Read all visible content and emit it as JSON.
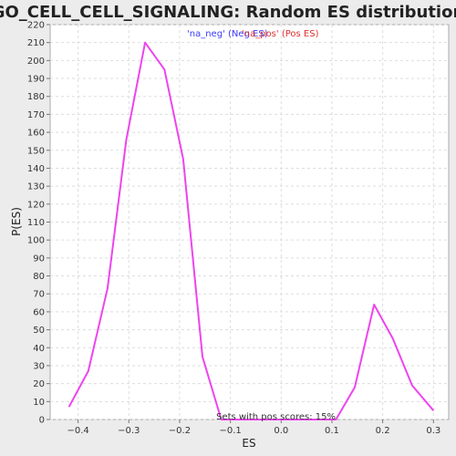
{
  "chart_data": {
    "type": "line",
    "title": "GO_CELL_CELL_SIGNALING: Random ES distribution",
    "xlabel": "ES",
    "ylabel": "P(ES)",
    "xlim": [
      -0.455,
      0.33
    ],
    "ylim": [
      0,
      220
    ],
    "x_ticks": [
      -0.4,
      -0.3,
      -0.2,
      -0.1,
      0.0,
      0.1,
      0.2,
      0.3
    ],
    "x_tick_labels": [
      "−0.4",
      "−0.3",
      "−0.2",
      "−0.1",
      "0.0",
      "0.1",
      "0.2",
      "0.3"
    ],
    "y_ticks": [
      0,
      10,
      20,
      30,
      40,
      50,
      60,
      70,
      80,
      90,
      100,
      110,
      120,
      130,
      140,
      150,
      160,
      170,
      180,
      190,
      200,
      210,
      220
    ],
    "grid": true,
    "legend_placement": "top-center",
    "legend": [
      {
        "label": "'na_neg' (Neg ES)",
        "color": "#3a3aff"
      },
      {
        "label": "'na_pos' (Pos ES)",
        "color": "#e03030"
      }
    ],
    "annotation": "Sets with pos scores: 15%",
    "series": [
      {
        "color": "#ee44ee",
        "x": [
          -0.418,
          -0.38,
          -0.342,
          -0.305,
          -0.268,
          -0.23,
          -0.193,
          -0.155,
          -0.118,
          -0.08,
          -0.043,
          -0.005,
          0.033,
          0.07,
          0.108,
          0.145,
          0.183,
          0.22,
          0.258,
          0.3
        ],
        "y": [
          7,
          27,
          73,
          156,
          210,
          195,
          145,
          35,
          0,
          0,
          0,
          0,
          0,
          0,
          0,
          18,
          64,
          45,
          19,
          5
        ]
      }
    ]
  }
}
